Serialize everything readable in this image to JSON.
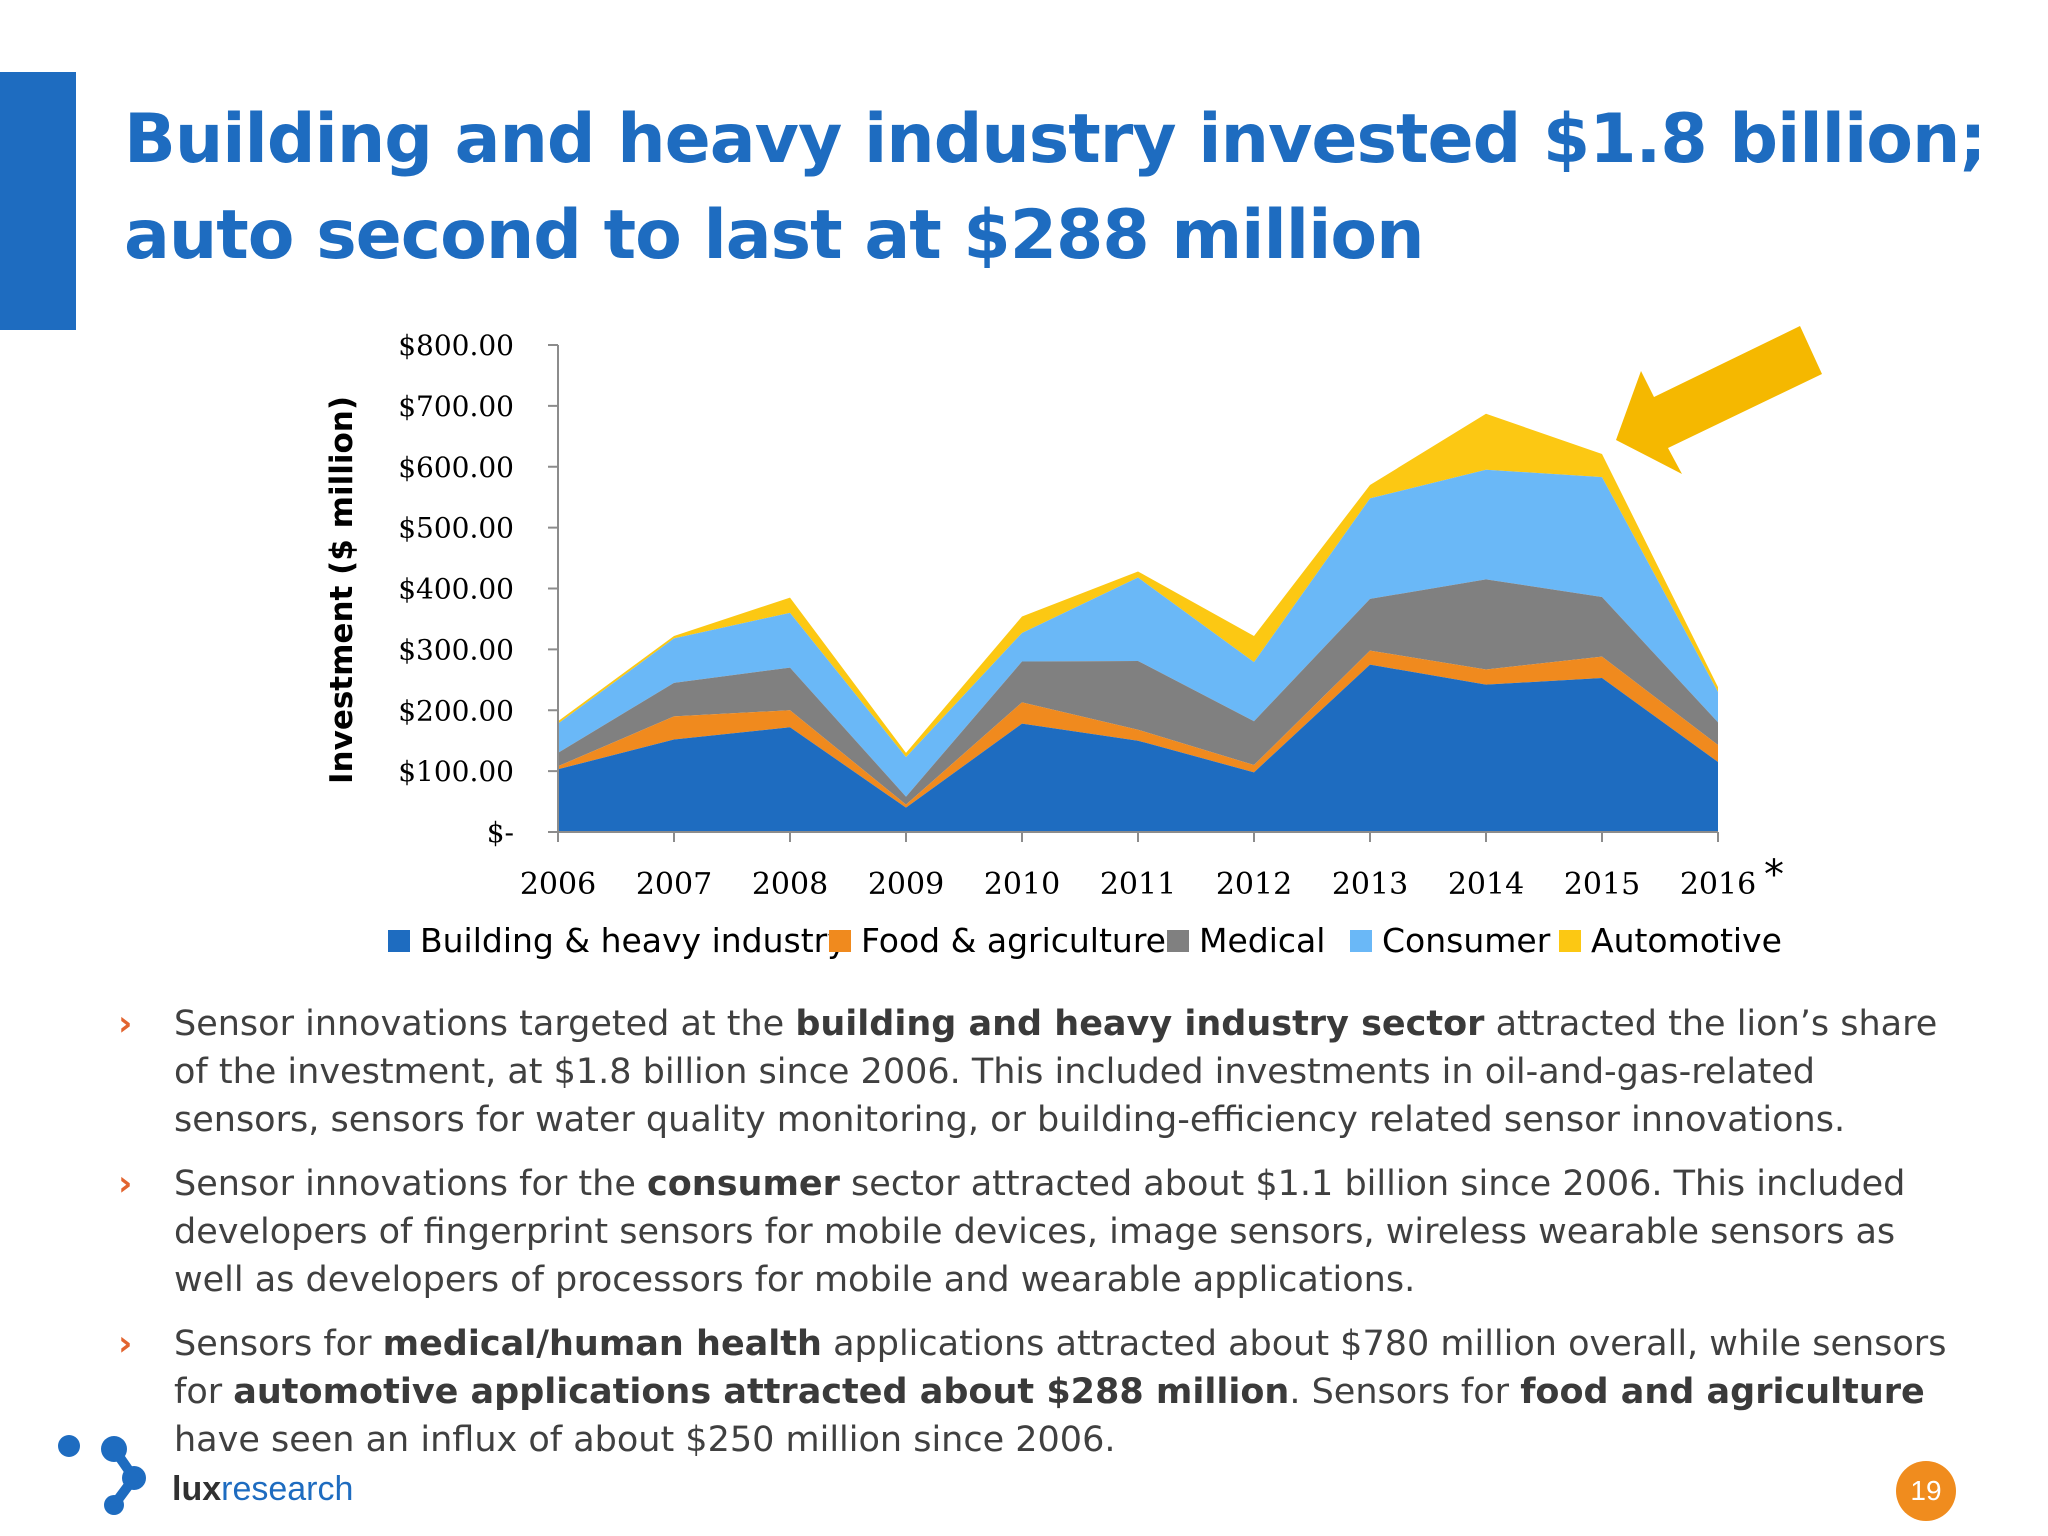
{
  "slide": {
    "title_line1": "Building and heavy industry invested $1.8 billion;",
    "title_line2": "auto second to last at $288 million",
    "page_number": "19",
    "accent_color": "#1e6cc0"
  },
  "logo": {
    "brand_part1": "lux",
    "brand_part2": "research",
    "icon": "lux-network-dots-icon"
  },
  "arrow": {
    "icon": "callout-arrow-icon",
    "color": "#f5b800"
  },
  "chart_data": {
    "type": "area",
    "stacked": true,
    "ylabel": "Investment ($ million)",
    "xlabel": "",
    "categories": [
      "2006",
      "2007",
      "2008",
      "2009",
      "2010",
      "2011",
      "2012",
      "2013",
      "2014",
      "2015",
      "2016"
    ],
    "footnote_marker": "*",
    "ylim": [
      0,
      800
    ],
    "y_ticks": [
      0,
      100,
      200,
      300,
      400,
      500,
      600,
      700,
      800
    ],
    "y_tick_labels": [
      "$-",
      "$100.00",
      "$200.00",
      "$300.00",
      "$400.00",
      "$500.00",
      "$600.00",
      "$700.00",
      "$800.00"
    ],
    "grid": false,
    "legend_position": "bottom",
    "series": [
      {
        "name": "Building & heavy industry",
        "color": "#1e6cc0",
        "values": [
          103,
          152,
          172,
          40,
          178,
          150,
          98,
          275,
          242,
          253,
          115
        ]
      },
      {
        "name": "Food & agriculture",
        "color": "#f08a1e",
        "values": [
          5,
          38,
          28,
          5,
          35,
          18,
          12,
          23,
          25,
          35,
          28
        ]
      },
      {
        "name": "Medical",
        "color": "#808080",
        "values": [
          22,
          55,
          70,
          13,
          67,
          113,
          72,
          85,
          148,
          98,
          37
        ]
      },
      {
        "name": "Consumer",
        "color": "#6ab8f7",
        "values": [
          48,
          73,
          90,
          65,
          47,
          137,
          97,
          165,
          180,
          197,
          50
        ]
      },
      {
        "name": "Automotive",
        "color": "#fcc813",
        "values": [
          4,
          4,
          25,
          7,
          27,
          10,
          43,
          22,
          92,
          38,
          8
        ]
      }
    ]
  },
  "bullets": [
    {
      "segments": [
        {
          "text": "Sensor innovations targeted at the ",
          "bold": false
        },
        {
          "text": "building and heavy industry sector",
          "bold": true
        },
        {
          "text": " attracted the lion’s share of the investment, at $1.8 billion since 2006. This included investments in oil-and-gas-related sensors, sensors for water quality monitoring, or building-efficiency related sensor innovations.",
          "bold": false
        }
      ]
    },
    {
      "segments": [
        {
          "text": "Sensor innovations for the ",
          "bold": false
        },
        {
          "text": "consumer",
          "bold": true
        },
        {
          "text": " sector attracted about $1.1 billion since 2006. This included developers of fingerprint sensors for mobile devices, image sensors, wireless wearable sensors as well as developers of processors for mobile and wearable applications.",
          "bold": false
        }
      ]
    },
    {
      "segments": [
        {
          "text": "Sensors for ",
          "bold": false
        },
        {
          "text": "medical/human health",
          "bold": true
        },
        {
          "text": " applications attracted about $780 million overall, while sensors for ",
          "bold": false
        },
        {
          "text": "automotive applications attracted about $288 million",
          "bold": true
        },
        {
          "text": ". Sensors for ",
          "bold": false
        },
        {
          "text": "food and agriculture",
          "bold": true
        },
        {
          "text": " have seen an influx of about $250 million since 2006.",
          "bold": false
        }
      ]
    }
  ],
  "bullet_marker": "›"
}
